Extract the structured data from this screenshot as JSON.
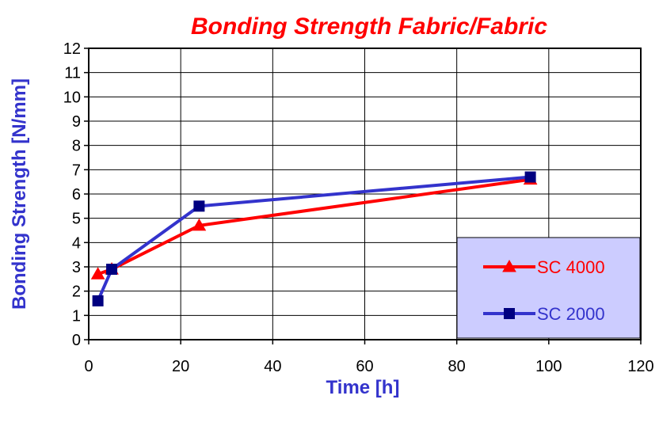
{
  "chart_data": {
    "type": "line",
    "title": "Bonding Strength Fabric/Fabric",
    "xlabel": "Time [h]",
    "ylabel": "Bonding Strength [N/mm]",
    "xlim": [
      0,
      120
    ],
    "ylim": [
      0,
      12
    ],
    "xticks": [
      "0",
      "20",
      "40",
      "60",
      "80",
      "100",
      "120"
    ],
    "yticks": [
      "0",
      "1",
      "2",
      "3",
      "4",
      "5",
      "6",
      "7",
      "8",
      "9",
      "10",
      "11",
      "12"
    ],
    "grid": true,
    "legend_position": "bottom-right",
    "series": [
      {
        "name": "SC 4000",
        "color": "#ff0000",
        "marker": "triangle",
        "x": [
          2,
          5,
          24,
          96
        ],
        "y": [
          2.7,
          2.9,
          4.7,
          6.6
        ]
      },
      {
        "name": "SC 2000",
        "color": "#3333cc",
        "marker": "square",
        "x": [
          2,
          5,
          24,
          96
        ],
        "y": [
          1.6,
          2.9,
          5.5,
          6.7
        ]
      }
    ],
    "colors": {
      "title": "#ff0000",
      "axis_label": "#3333cc",
      "legend_background": "#ccccff"
    }
  }
}
